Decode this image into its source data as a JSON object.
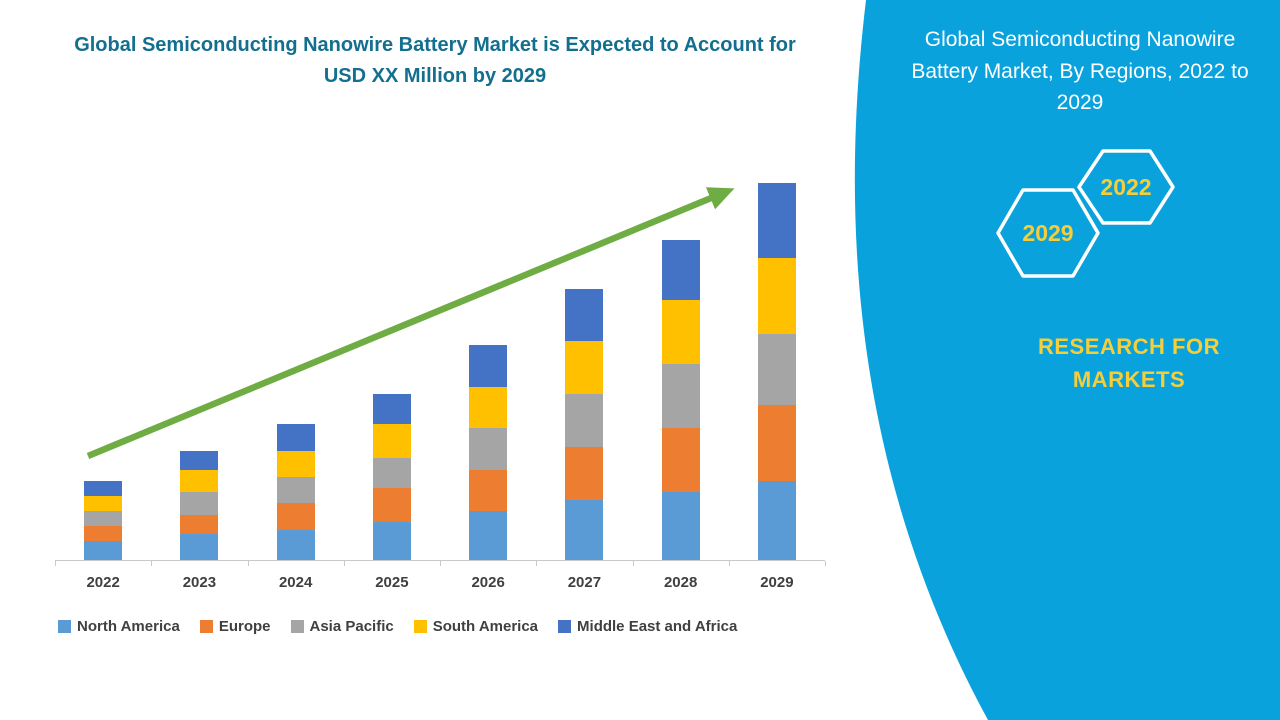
{
  "left": {
    "title": "Global Semiconducting Nanowire Battery Market is Expected to Account for USD XX Million by 2029"
  },
  "chart_data": {
    "type": "bar",
    "stacked": true,
    "title": "Global Semiconducting Nanowire Battery Market is Expected to Account for USD XX Million by 2029",
    "categories": [
      "2022",
      "2023",
      "2024",
      "2025",
      "2026",
      "2027",
      "2028",
      "2029"
    ],
    "series": [
      {
        "name": "North America",
        "color": "#5B9BD5",
        "values": [
          5,
          7,
          8,
          10,
          13,
          16,
          18,
          21
        ]
      },
      {
        "name": "Europe",
        "color": "#ED7D31",
        "values": [
          4,
          5,
          7,
          9,
          11,
          14,
          17,
          20
        ]
      },
      {
        "name": "Asia Pacific",
        "color": "#A5A5A5",
        "values": [
          4,
          6,
          7,
          8,
          11,
          14,
          17,
          19
        ]
      },
      {
        "name": "South America",
        "color": "#FFC000",
        "values": [
          4,
          6,
          7,
          9,
          11,
          14,
          17,
          20
        ]
      },
      {
        "name": "Middle East and Africa",
        "color": "#4472C4",
        "values": [
          4,
          5,
          7,
          8,
          11,
          14,
          16,
          20
        ]
      }
    ],
    "xlabel": "",
    "ylabel": "",
    "ylim": [
      0,
      100
    ],
    "grid": false,
    "legend_position": "bottom",
    "annotations": [
      "upward green trend arrow from 2022 to 2029"
    ]
  },
  "arrow": {
    "color": "#6FAD44"
  },
  "right_panel": {
    "heading": "Global Semiconducting Nanowire Battery Market, By Regions, 2022 to 2029",
    "hexagons": [
      {
        "label": "2029"
      },
      {
        "label": "2022"
      }
    ],
    "brand": "RESEARCH FOR MARKETS",
    "colors": {
      "panel": "#0AA2DC",
      "accent_yellow": "#F5CE3A",
      "hex_border": "#FFFFFF"
    }
  }
}
